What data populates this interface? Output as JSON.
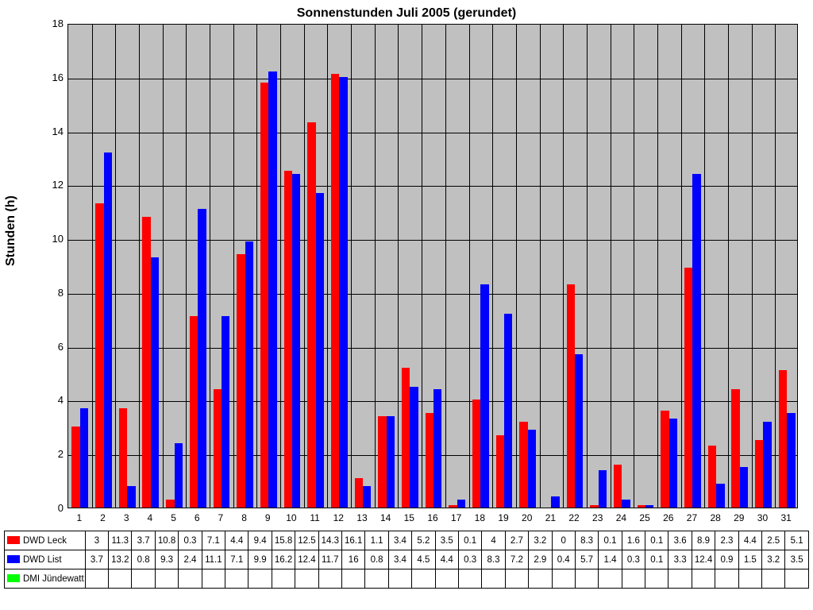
{
  "chart": {
    "type": "bar",
    "title": "Sonnenstunden Juli 2005 (gerundet)",
    "title_fontsize": 16,
    "ylabel": "Stunden (h)",
    "ylabel_fontsize": 16,
    "ylim": [
      0,
      18
    ],
    "ytick_step": 2,
    "yticks": [
      0,
      2,
      4,
      6,
      8,
      10,
      12,
      14,
      16,
      18
    ],
    "categories": [
      "1",
      "2",
      "3",
      "4",
      "5",
      "6",
      "7",
      "8",
      "9",
      "10",
      "11",
      "12",
      "13",
      "14",
      "15",
      "16",
      "17",
      "18",
      "19",
      "20",
      "21",
      "22",
      "23",
      "24",
      "25",
      "26",
      "27",
      "28",
      "29",
      "30",
      "31"
    ],
    "plot_background": "#c0c0c0",
    "grid_color": "#000000",
    "series": [
      {
        "name": "DWD Leck",
        "color": "#ff0000",
        "values": [
          3,
          11.3,
          3.7,
          10.8,
          0.3,
          7.1,
          4.4,
          9.4,
          15.8,
          12.5,
          14.3,
          16.1,
          1.1,
          3.4,
          5.2,
          3.5,
          0.1,
          4,
          2.7,
          3.2,
          0,
          8.3,
          0.1,
          1.6,
          0.1,
          3.6,
          8.9,
          2.3,
          4.4,
          2.5,
          5.1
        ]
      },
      {
        "name": "DWD List",
        "color": "#0000ff",
        "values": [
          3.7,
          13.2,
          0.8,
          9.3,
          2.4,
          11.1,
          7.1,
          9.9,
          16.2,
          12.4,
          11.7,
          16,
          0.8,
          3.4,
          4.5,
          4.4,
          0.3,
          8.3,
          7.2,
          2.9,
          0.4,
          5.7,
          1.4,
          0.3,
          0.1,
          3.3,
          12.4,
          0.9,
          1.5,
          3.2,
          3.5
        ]
      },
      {
        "name": "DMI Jündewatt",
        "color": "#00ff00",
        "values": [
          null,
          null,
          null,
          null,
          null,
          null,
          null,
          null,
          null,
          null,
          null,
          null,
          null,
          null,
          null,
          null,
          null,
          null,
          null,
          null,
          null,
          null,
          null,
          null,
          null,
          null,
          null,
          null,
          null,
          null,
          null
        ]
      }
    ],
    "bar_group_width_ratio": 0.7
  }
}
